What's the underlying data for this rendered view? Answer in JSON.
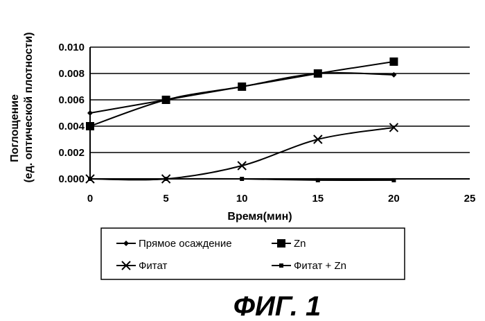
{
  "chart_data": {
    "type": "line",
    "x": [
      0,
      5,
      10,
      15,
      20
    ],
    "xlabel": "Время(мин)",
    "ylabel_line1": "Поглощение",
    "ylabel_line2": "(ед. оптической плотности)",
    "xlim": [
      0,
      25
    ],
    "ylim": [
      0,
      0.01
    ],
    "xticks": [
      "0",
      "5",
      "10",
      "15",
      "20",
      "25"
    ],
    "yticks": [
      "0.000",
      "0.002",
      "0.004",
      "0.006",
      "0.008",
      "0.010"
    ],
    "grid": "horizontal",
    "legend_position": "bottom",
    "series": [
      {
        "name": "Прямое осаждение",
        "marker": "diamond",
        "values": [
          0.005,
          0.006,
          0.007,
          0.008,
          0.0079
        ]
      },
      {
        "name": "Zn",
        "marker": "square",
        "values": [
          0.004,
          0.006,
          0.007,
          0.008,
          0.0089
        ]
      },
      {
        "name": "Фитат",
        "marker": "x",
        "values": [
          0.0,
          0.0,
          0.001,
          0.003,
          0.0039
        ]
      },
      {
        "name": "Фитат + Zn",
        "marker": "small-square",
        "values": [
          0.0,
          0.0,
          0.0,
          -0.0001,
          -0.0001
        ]
      }
    ]
  },
  "caption": "ФИГ. 1",
  "colors": {
    "ink": "#000000",
    "background": "#ffffff"
  }
}
